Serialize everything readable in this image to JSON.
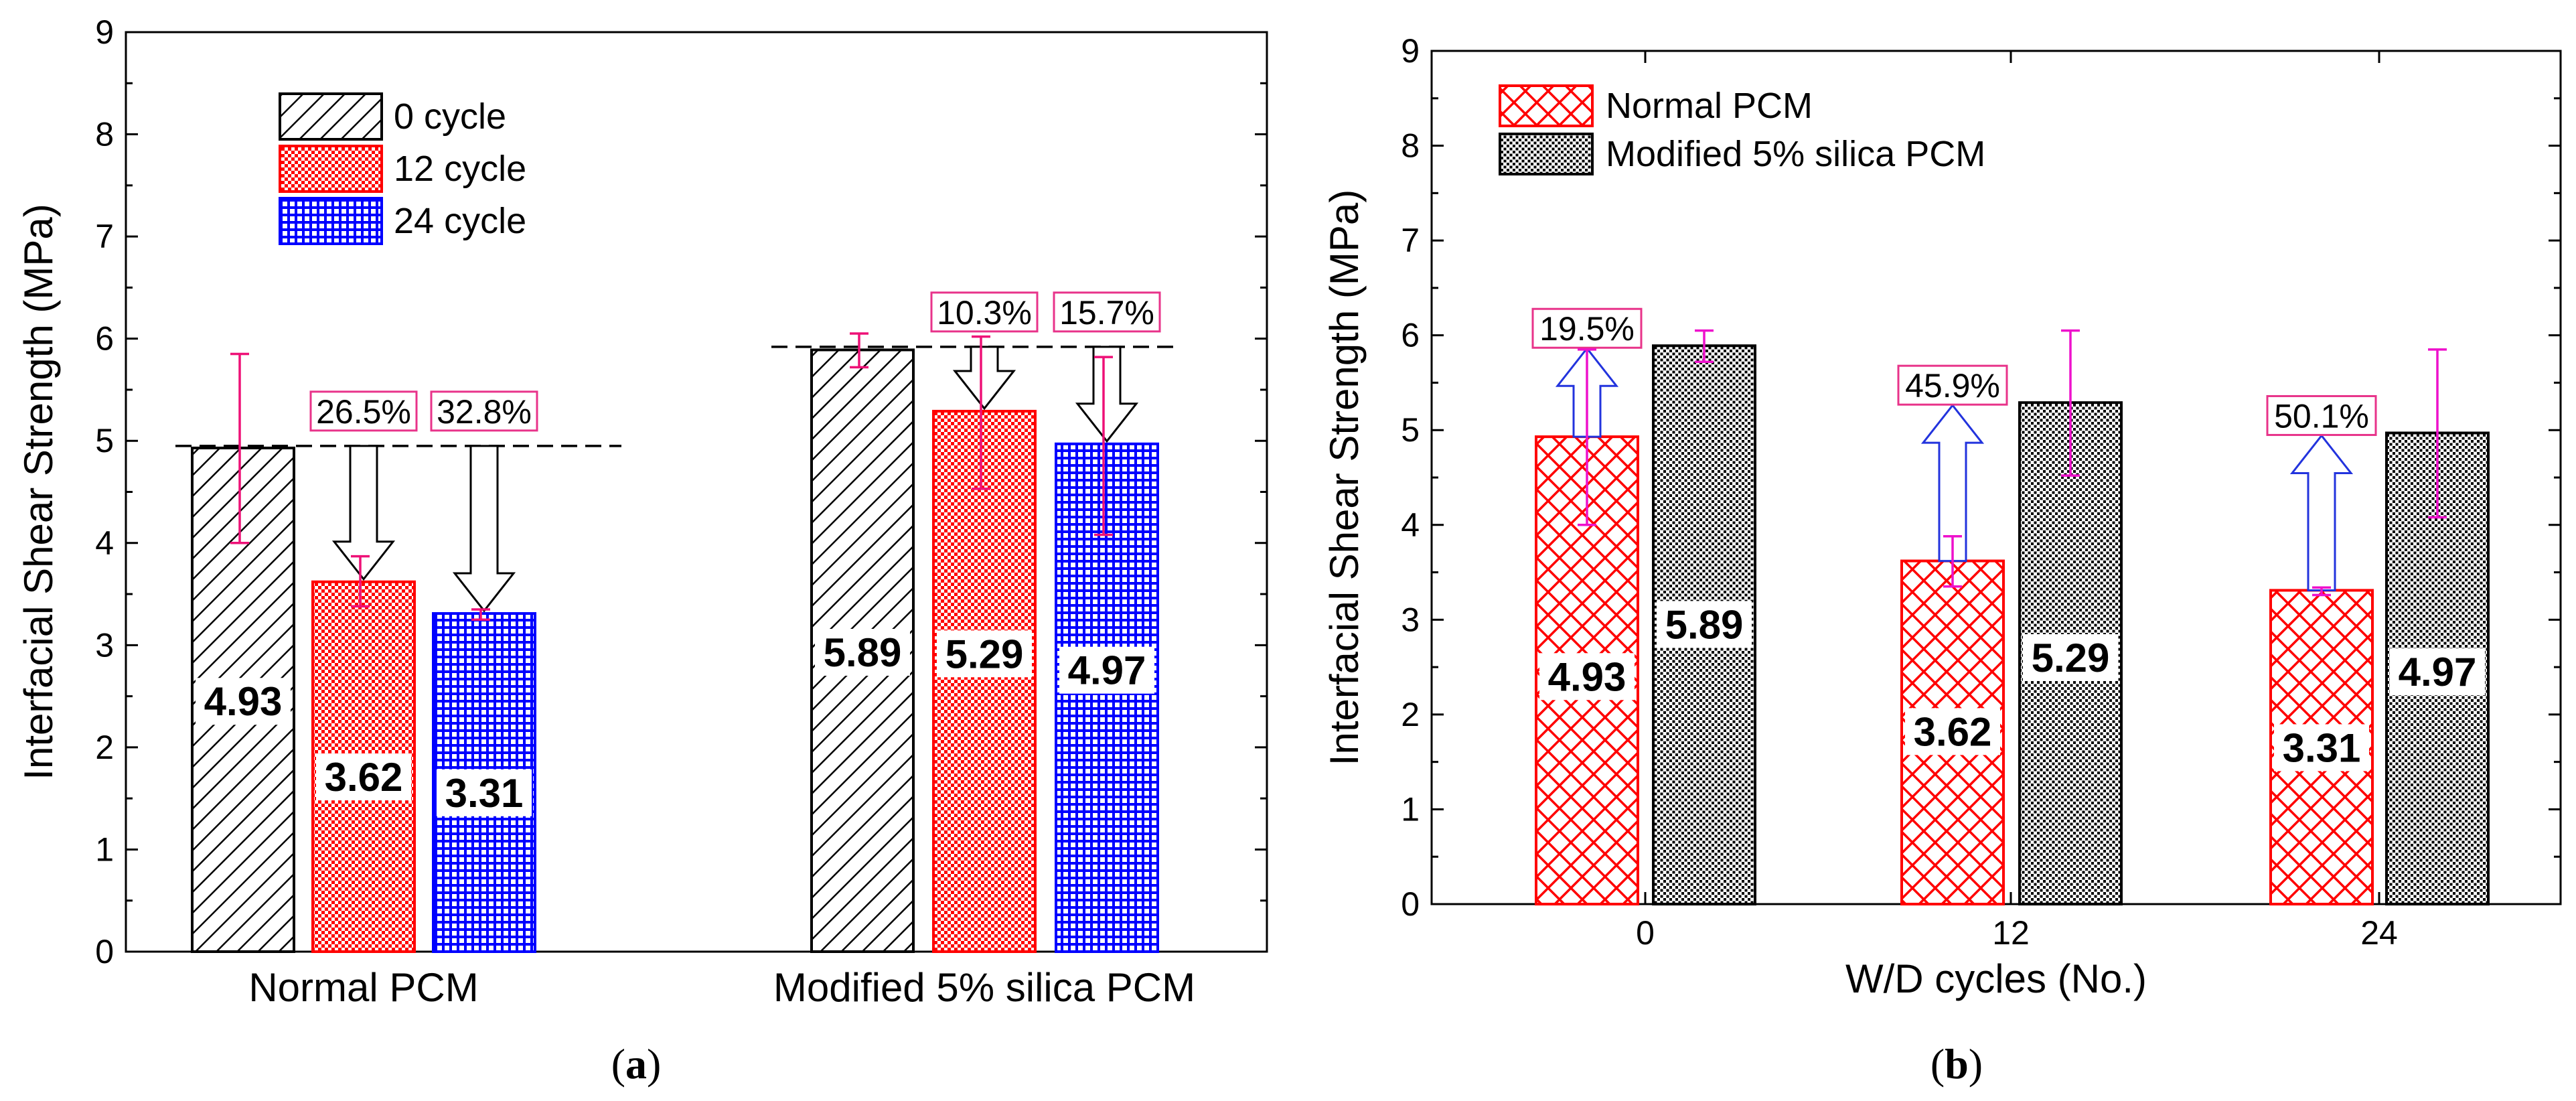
{
  "chart_data": [
    {
      "type": "bar",
      "caption": "a",
      "ylabel": "Interfacial Shear Strength (MPa)",
      "xlabel": "",
      "ylim": [
        0,
        9
      ],
      "yticks": [
        "0",
        "1",
        "2",
        "3",
        "4",
        "5",
        "6",
        "7",
        "8",
        "9"
      ],
      "categories": [
        "Normal PCM",
        "Modified 5% silica PCM"
      ],
      "legend_position": "top-left",
      "series": [
        {
          "name": "0 cycle",
          "values": [
            4.93,
            5.89
          ],
          "labels": [
            "4.93",
            "5.89"
          ],
          "err_low": [
            4.0,
            5.72
          ],
          "err_high": [
            5.85,
            6.05
          ],
          "pattern": "diagonal-hatch",
          "color": "#000000"
        },
        {
          "name": "12 cycle",
          "values": [
            3.62,
            5.29
          ],
          "labels": [
            "3.62",
            "5.29"
          ],
          "err_low": [
            3.38,
            4.53
          ],
          "err_high": [
            3.87,
            6.02
          ],
          "pattern": "dense-dots",
          "color": "#ff0000"
        },
        {
          "name": "24 cycle",
          "values": [
            3.31,
            4.97
          ],
          "labels": [
            "3.31",
            "4.97"
          ],
          "err_low": [
            3.25,
            4.08
          ],
          "err_high": [
            3.35,
            5.82
          ],
          "pattern": "grid",
          "color": "#0000ff"
        }
      ],
      "reference_lines": [
        4.95,
        5.92
      ],
      "reductions": [
        {
          "category": 0,
          "series": 1,
          "label": "26.5%"
        },
        {
          "category": 0,
          "series": 2,
          "label": "32.8%"
        },
        {
          "category": 1,
          "series": 1,
          "label": "10.3%"
        },
        {
          "category": 1,
          "series": 2,
          "label": "15.7%"
        }
      ],
      "colors": {
        "errorbar": "#ee1177",
        "pct_box": "#e8338a",
        "arrow": "#000000"
      }
    },
    {
      "type": "bar",
      "caption": "b",
      "ylabel": "Interfacial Shear Strength (MPa)",
      "xlabel": "W/D cycles (No.)",
      "ylim": [
        0,
        9
      ],
      "yticks": [
        "0",
        "1",
        "2",
        "3",
        "4",
        "5",
        "6",
        "7",
        "8",
        "9"
      ],
      "categories": [
        "0",
        "12",
        "24"
      ],
      "legend_position": "top-left",
      "series": [
        {
          "name": "Normal PCM",
          "values": [
            4.93,
            3.62,
            3.31
          ],
          "labels": [
            "4.93",
            "3.62",
            "3.31"
          ],
          "err_low": [
            4.0,
            3.35,
            3.26
          ],
          "err_high": [
            5.85,
            3.88,
            3.34
          ],
          "pattern": "crosshatch",
          "color": "#ff0000"
        },
        {
          "name": "Modified 5% silica PCM",
          "values": [
            5.89,
            5.29,
            4.97
          ],
          "labels": [
            "5.89",
            "5.29",
            "4.97"
          ],
          "err_low": [
            5.72,
            4.52,
            4.08
          ],
          "err_high": [
            6.05,
            6.05,
            5.85
          ],
          "pattern": "dots",
          "color": "#000000"
        }
      ],
      "improvements": [
        {
          "category": 0,
          "label": "19.5%"
        },
        {
          "category": 1,
          "label": "45.9%"
        },
        {
          "category": 2,
          "label": "50.1%"
        }
      ],
      "colors": {
        "errorbar": "#ee11cc",
        "pct_box": "#e8338a",
        "arrow": "#2233dd"
      }
    }
  ]
}
